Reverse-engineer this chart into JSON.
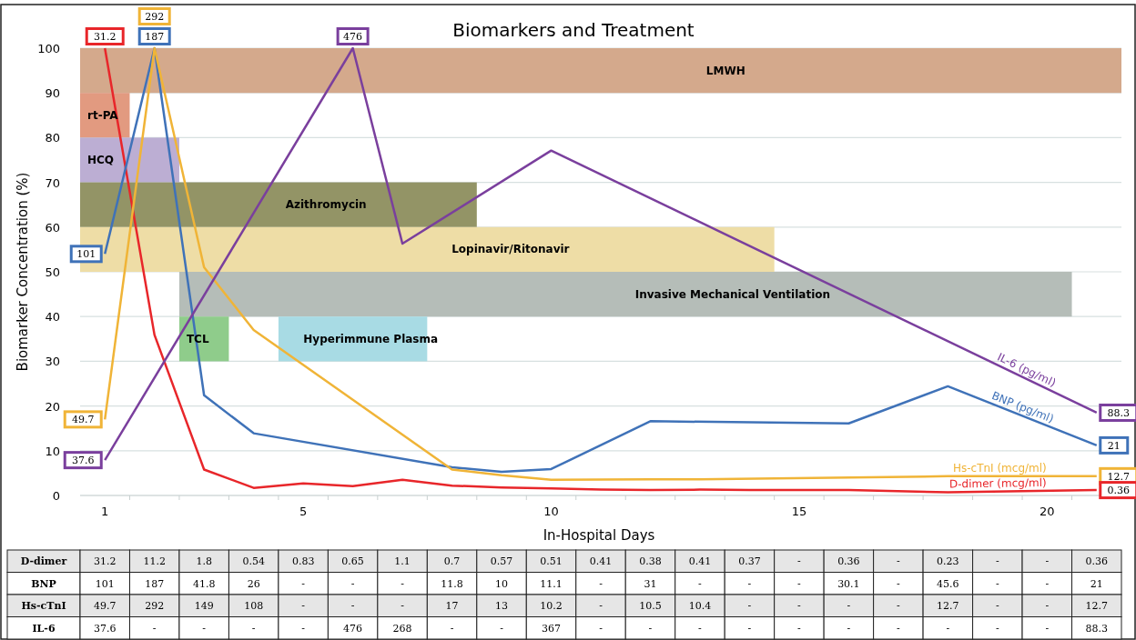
{
  "chart_data": {
    "type": "line",
    "title": "Biomarkers and Treatment",
    "xlabel": "In-Hospital Days",
    "ylabel": "Biomarker Concentration (%)",
    "x": [
      1,
      2,
      3,
      4,
      5,
      6,
      7,
      8,
      9,
      10,
      11,
      12,
      13,
      14,
      15,
      16,
      17,
      18,
      19,
      20,
      21
    ],
    "xlim": [
      0.5,
      21.5
    ],
    "xticks": [
      1,
      5,
      10,
      15,
      20,
      {
        "value": 1.5,
        "label": null
      },
      {
        "value": 2.5,
        "label": null
      },
      {
        "value": 3.5,
        "label": null
      },
      {
        "value": 4.5,
        "label": null
      },
      {
        "value": 5.5,
        "label": null
      },
      {
        "value": 6.5,
        "label": null
      },
      {
        "value": 7.5,
        "label": null
      },
      {
        "value": 8.5,
        "label": null
      },
      {
        "value": 9.5,
        "label": null
      },
      {
        "value": 10.5,
        "label": null
      },
      {
        "value": 11.5,
        "label": null
      },
      {
        "value": 12.5,
        "label": null
      },
      {
        "value": 13.5,
        "label": null
      },
      {
        "value": 14.5,
        "label": null
      },
      {
        "value": 15.5,
        "label": null
      },
      {
        "value": 16.5,
        "label": null
      },
      {
        "value": 17.5,
        "label": null
      },
      {
        "value": 18.5,
        "label": null
      },
      {
        "value": 19.5,
        "label": null
      },
      {
        "value": 20.5,
        "label": null
      }
    ],
    "ylim": [
      0,
      100
    ],
    "yticks": [
      0,
      10,
      20,
      30,
      40,
      50,
      60,
      70,
      80,
      90,
      100
    ],
    "grid": "y",
    "marker": "none",
    "line_style": "solid",
    "legend": "right",
    "series": [
      {
        "name": "D-dimer (mcg/ml)",
        "color": "#e8262a",
        "values": [
          100,
          35.9,
          5.8,
          1.7,
          2.7,
          2.1,
          3.5,
          2.2,
          1.8,
          1.6,
          1.3,
          1.2,
          1.3,
          1.2,
          null,
          1.2,
          null,
          0.7,
          null,
          null,
          1.2
        ]
      },
      {
        "name": "BNP (pg/ml)",
        "color": "#3f72b8",
        "values": [
          54.0,
          100,
          22.4,
          13.9,
          null,
          null,
          null,
          6.3,
          5.3,
          5.9,
          null,
          16.6,
          null,
          null,
          null,
          16.1,
          null,
          24.4,
          null,
          null,
          11.2
        ]
      },
      {
        "name": "Hs-cTnI (mcg/ml)",
        "color": "#f0b437",
        "values": [
          17.0,
          100,
          51.0,
          37.0,
          null,
          null,
          null,
          5.8,
          4.5,
          3.5,
          null,
          3.6,
          3.6,
          null,
          null,
          null,
          null,
          4.3,
          null,
          null,
          4.3
        ]
      },
      {
        "name": "IL-6 (pg/ml)",
        "color": "#7a3f9d",
        "values": [
          7.9,
          null,
          null,
          null,
          null,
          100,
          56.3,
          null,
          null,
          77.1,
          null,
          null,
          null,
          null,
          null,
          null,
          null,
          null,
          null,
          null,
          18.5
        ]
      }
    ],
    "bands": [
      {
        "axis": "x",
        "from": 0.5,
        "to": 21.5,
        "label": "LMWH",
        "color": "#d4a98c"
      },
      {
        "axis": "x",
        "from": 0.5,
        "to": 1.5,
        "label": "rt-PA",
        "color": "#e29a80"
      },
      {
        "axis": "x",
        "from": 0.5,
        "to": 2.5,
        "label": "HCQ",
        "color": "#bcaed3"
      },
      {
        "axis": "x",
        "from": 0.5,
        "to": 8.5,
        "label": "Azithromycin",
        "color": "#939466"
      },
      {
        "axis": "x",
        "from": 0.5,
        "to": 14.5,
        "label": "Lopinavir/Ritonavir",
        "color": "#eedda6"
      },
      {
        "axis": "x",
        "from": 2.5,
        "to": 20.5,
        "label": "Invasive Mechanical Ventilation",
        "color": "#b5bdb8"
      },
      {
        "axis": "x",
        "from": 2.5,
        "to": 3.5,
        "label": "TCL",
        "color": "#8fcc8b"
      },
      {
        "axis": "x",
        "from": 4.5,
        "to": 7.5,
        "label": "Hyperimmune Plasma",
        "color": "#a8dbe4"
      }
    ],
    "annotations": [
      {
        "text": "31.2",
        "x": 1,
        "y": 100
      },
      {
        "text": "187",
        "x": 2,
        "y": 100
      },
      {
        "text": "292",
        "x": 2,
        "y": 100
      },
      {
        "text": "476",
        "x": 6,
        "y": 100
      },
      {
        "text": "101",
        "x": 1,
        "y": 54.0
      },
      {
        "text": "49.7",
        "x": 1,
        "y": 17.0
      },
      {
        "text": "37.6",
        "x": 1,
        "y": 7.9
      },
      {
        "text": "88.3",
        "x": 21,
        "y": 18.5
      },
      {
        "text": "21",
        "x": 21,
        "y": 11.2
      },
      {
        "text": "12.7",
        "x": 21,
        "y": 4.3
      },
      {
        "text": "0.36",
        "x": 21,
        "y": 1.2
      },
      "D-dimer",
      "31.2",
      "11.2",
      "1.8",
      "0.54",
      "0.83",
      "0.65",
      "1.1",
      "0.7",
      "0.57",
      "0.51",
      "0.41",
      "0.38",
      "0.41",
      "0.37",
      "-",
      "0.36",
      "-",
      "0.23",
      "-",
      "-",
      "0.36",
      "BNP",
      "101",
      "187",
      "41.8",
      "26",
      "-",
      "-",
      "-",
      "11.8",
      "10",
      "11.1",
      "-",
      "31",
      "-",
      "-",
      "-",
      "30.1",
      "-",
      "45.6",
      "-",
      "-",
      "21",
      "Hs-cTnI",
      "49.7",
      "292",
      "149",
      "108",
      "-",
      "-",
      "-",
      "17",
      "13",
      "10.2",
      "-",
      "10.5",
      "10.4",
      "-",
      "-",
      "-",
      "-",
      "12.7",
      "-",
      "-",
      "12.7",
      "IL-6",
      "37.6",
      "-",
      "-",
      "-",
      "-",
      "476",
      "268",
      "-",
      "-",
      "367",
      "-",
      "-",
      "-",
      "-",
      "-",
      "-",
      "-",
      "-",
      "-",
      "-",
      "88.3"
    ]
  }
}
